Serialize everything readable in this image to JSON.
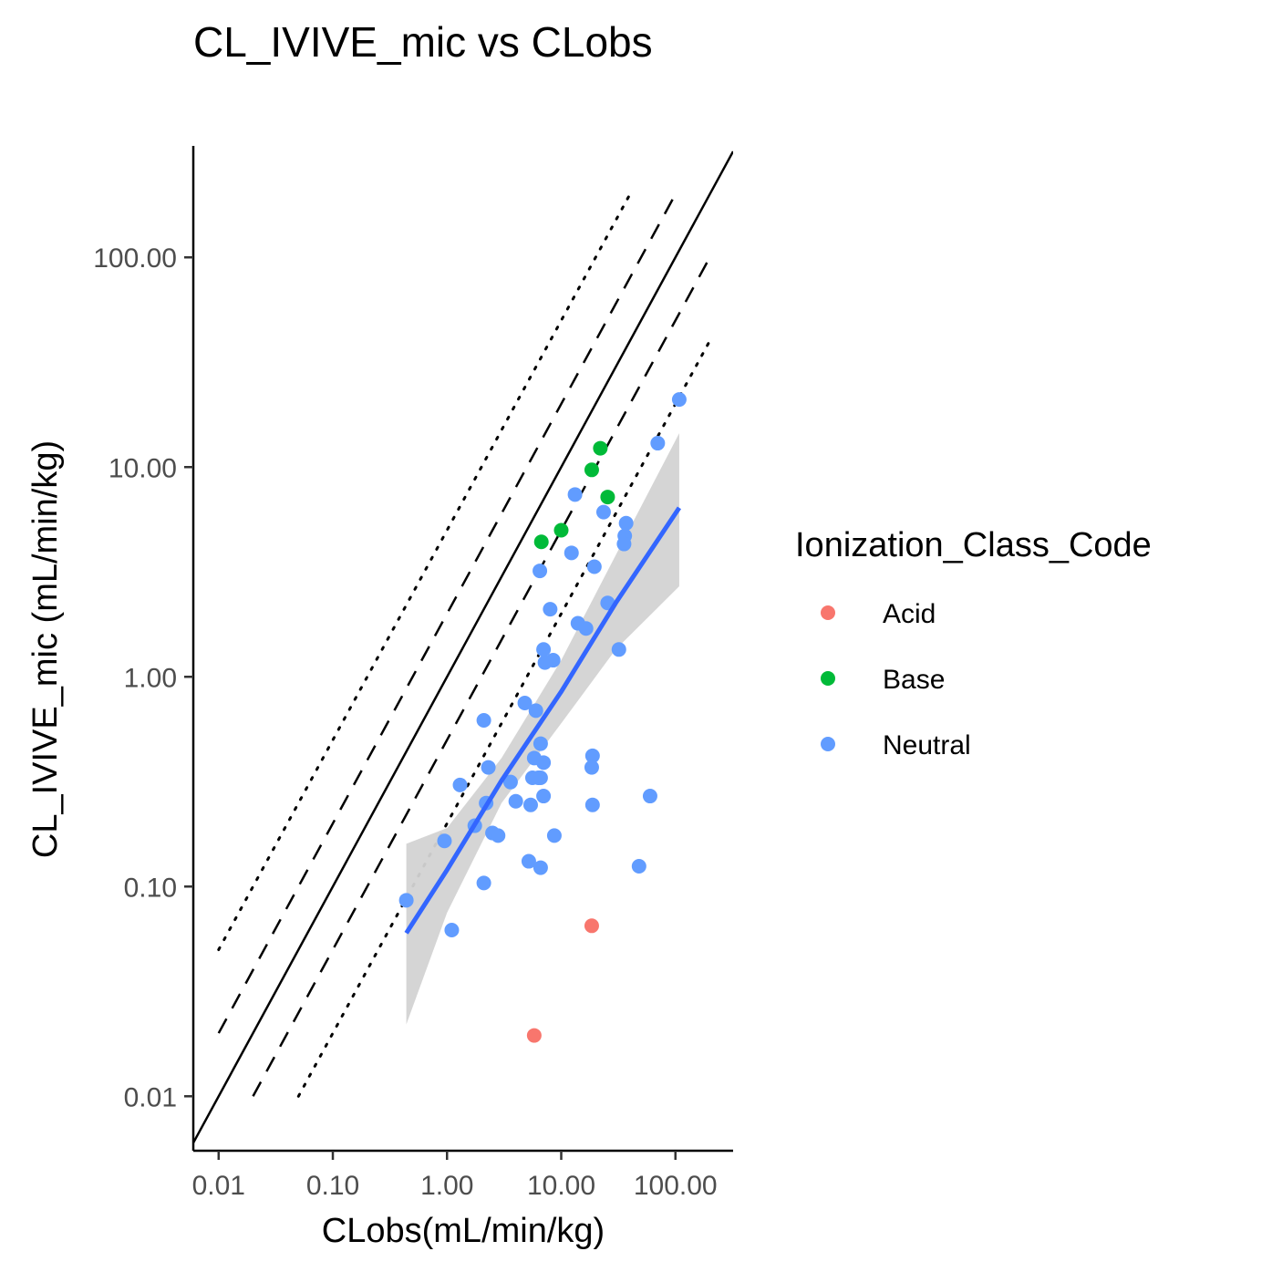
{
  "chart_data": {
    "type": "scatter",
    "title": "CL_IVIVE_mic vs CLobs",
    "xlabel": "CLobs(mL/min/kg)",
    "ylabel": "CL_IVIVE_mic (mL/min/kg)",
    "xscale": "log10",
    "yscale": "log10",
    "xlim": [
      0.006,
      320
    ],
    "ylim": [
      0.0055,
      340
    ],
    "xticks": [
      0.01,
      0.1,
      1,
      10,
      100
    ],
    "xtick_labels": [
      "0.01",
      "0.10",
      "1.00",
      "10.00",
      "100.00"
    ],
    "yticks": [
      0.01,
      0.1,
      1,
      10,
      100
    ],
    "ytick_labels": [
      "0.01",
      "0.10",
      "1.00",
      "10.00",
      "100.00"
    ],
    "grid": false,
    "legend": {
      "title": "Ionization_Class_Code",
      "position": "right",
      "entries": [
        {
          "label": "Acid",
          "color": "#F8766D"
        },
        {
          "label": "Base",
          "color": "#00BA38"
        },
        {
          "label": "Neutral",
          "color": "#619CFF"
        }
      ]
    },
    "reference_lines": [
      {
        "style": "solid",
        "x": [
          0.006,
          320
        ],
        "y": [
          0.006,
          320
        ]
      },
      {
        "style": "dashed",
        "x": [
          0.01,
          100
        ],
        "y": [
          0.02,
          200
        ]
      },
      {
        "style": "dashed",
        "x": [
          0.02,
          200
        ],
        "y": [
          0.01,
          100
        ]
      },
      {
        "style": "dotted",
        "x": [
          0.01,
          40
        ],
        "y": [
          0.05,
          200
        ]
      },
      {
        "style": "dotted",
        "x": [
          0.05,
          200
        ],
        "y": [
          0.01,
          40
        ]
      }
    ],
    "regression": {
      "color": "#3366FF",
      "band_color": "#d3d3d3",
      "x": [
        0.44,
        1,
        3,
        10,
        30,
        108
      ],
      "y": [
        0.06,
        0.12,
        0.32,
        0.85,
        2.25,
        6.4
      ],
      "ci_low": [
        0.022,
        0.075,
        0.25,
        0.6,
        1.35,
        2.7
      ],
      "ci_high": [
        0.16,
        0.19,
        0.41,
        1.2,
        3.8,
        14.5
      ]
    },
    "series": [
      {
        "name": "Acid",
        "color": "#F8766D",
        "x": [
          18.5,
          5.8
        ],
        "y": [
          0.065,
          0.0195
        ]
      },
      {
        "name": "Base",
        "color": "#00BA38",
        "x": [
          22,
          18.5,
          25.5,
          10,
          6.7
        ],
        "y": [
          12.3,
          9.7,
          7.2,
          5.0,
          4.4
        ]
      },
      {
        "name": "Neutral",
        "color": "#619CFF",
        "x": [
          108,
          70,
          13.2,
          23.5,
          37,
          36,
          35.5,
          12.3,
          6.5,
          19.5,
          8,
          25.5,
          14,
          16.5,
          7,
          8.5,
          7.2,
          32,
          4.8,
          6,
          2.1,
          6.6,
          5.8,
          18.8,
          7,
          18.5,
          2.3,
          6.3,
          6.6,
          5.6,
          3.6,
          1.3,
          7,
          4,
          2.2,
          5.4,
          18.8,
          1.75,
          2.5,
          2.8,
          8.7,
          0.95,
          5.2,
          6.6,
          48,
          2.1,
          0.44,
          1.1,
          60
        ],
        "y": [
          21,
          13,
          7.4,
          6.1,
          5.4,
          4.7,
          4.3,
          3.9,
          3.2,
          3.35,
          2.1,
          2.25,
          1.8,
          1.7,
          1.35,
          1.2,
          1.17,
          1.35,
          0.75,
          0.69,
          0.62,
          0.48,
          0.41,
          0.42,
          0.39,
          0.37,
          0.37,
          0.33,
          0.33,
          0.33,
          0.315,
          0.305,
          0.27,
          0.255,
          0.25,
          0.245,
          0.245,
          0.195,
          0.18,
          0.175,
          0.175,
          0.165,
          0.132,
          0.123,
          0.125,
          0.104,
          0.086,
          0.062,
          0.27
        ]
      }
    ]
  }
}
